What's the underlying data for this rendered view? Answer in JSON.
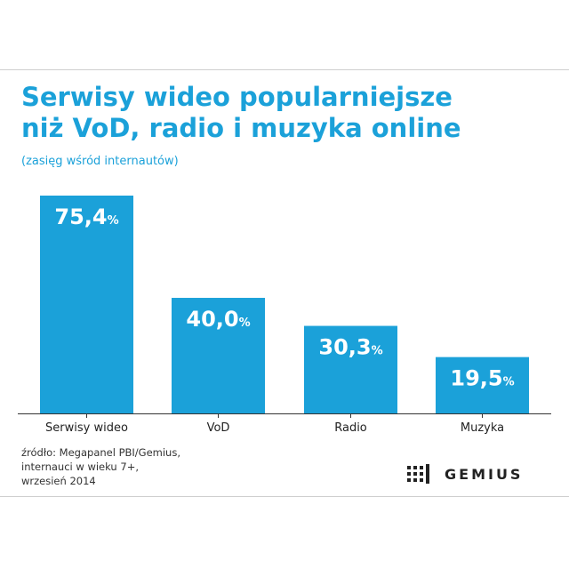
{
  "title_line1": "Serwisy wideo popularniejsze",
  "title_line2": "niż VoD, radio i muzyka online",
  "subtitle": "(zasięg wśród internautów)",
  "source_lines": [
    "źródło: Megapanel PBI/Gemius,",
    "internauci w wieku 7+,",
    "wrzesień 2014"
  ],
  "logo_text": "GEMIUS",
  "colors": {
    "bar": "#1ba1d9",
    "title": "#1ba1d9",
    "text": "#222222"
  },
  "chart_data": {
    "type": "bar",
    "title": "Serwisy wideo popularniejsze niż VoD, radio i muzyka online",
    "subtitle": "(zasięg wśród internautów)",
    "categories": [
      "Serwisy wideo",
      "VoD",
      "Radio",
      "Muzyka"
    ],
    "values": [
      75.4,
      40.0,
      30.3,
      19.5
    ],
    "value_labels": [
      "75,4",
      "40,0",
      "30,3",
      "19,5"
    ],
    "unit": "%",
    "xlabel": "",
    "ylabel": "",
    "ylim": [
      0,
      75.4
    ],
    "grid": false,
    "legend": "none"
  }
}
